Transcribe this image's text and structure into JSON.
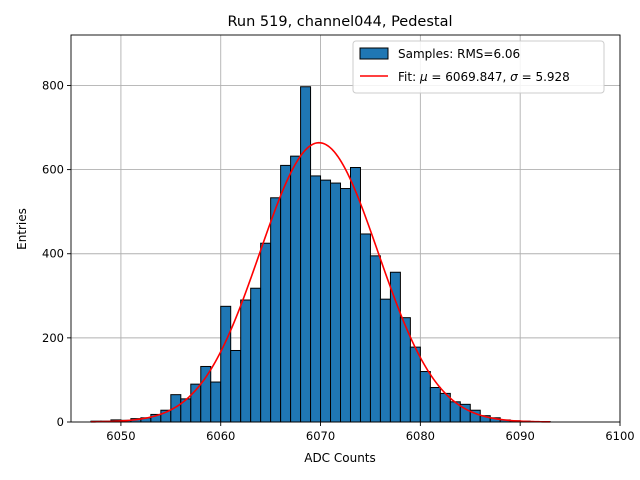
{
  "chart_data": {
    "type": "bar",
    "title": "Run 519, channel044, Pedestal",
    "xlabel": "ADC Counts",
    "ylabel": "Entries",
    "xlim": [
      6045,
      6100
    ],
    "ylim": [
      0,
      920
    ],
    "xticks": [
      6050,
      6060,
      6070,
      6080,
      6090,
      6100
    ],
    "yticks": [
      0,
      200,
      400,
      600,
      800
    ],
    "grid": true,
    "legend_position": "top-right",
    "bin_width": 1,
    "bin_starts": [
      6047,
      6048,
      6049,
      6050,
      6051,
      6052,
      6053,
      6054,
      6055,
      6056,
      6057,
      6058,
      6059,
      6060,
      6061,
      6062,
      6063,
      6064,
      6065,
      6066,
      6067,
      6068,
      6069,
      6070,
      6071,
      6072,
      6073,
      6074,
      6075,
      6076,
      6077,
      6078,
      6079,
      6080,
      6081,
      6082,
      6083,
      6084,
      6085,
      6086,
      6087,
      6088,
      6089,
      6090,
      6091,
      6092
    ],
    "counts": [
      2,
      2,
      5,
      4,
      8,
      10,
      18,
      28,
      65,
      55,
      90,
      132,
      95,
      275,
      170,
      290,
      318,
      425,
      533,
      610,
      632,
      797,
      585,
      575,
      568,
      555,
      605,
      447,
      395,
      292,
      356,
      248,
      178,
      120,
      82,
      68,
      48,
      42,
      28,
      15,
      10,
      5,
      3,
      2,
      1,
      1
    ],
    "series": [
      {
        "name": "Samples: RMS=6.06",
        "kind": "histogram",
        "color": "#1f77b4"
      },
      {
        "name_prefix": "Fit: ",
        "name_mu_symbol": "μ",
        "name_mu_text": " = 6069.847, ",
        "name_sigma_symbol": "σ",
        "name_sigma_text": " = 5.928",
        "kind": "gaussian",
        "color": "#ff0000",
        "mu": 6069.847,
        "sigma": 5.928,
        "amplitude": 664,
        "x_range": [
          6047,
          6093
        ]
      }
    ]
  }
}
